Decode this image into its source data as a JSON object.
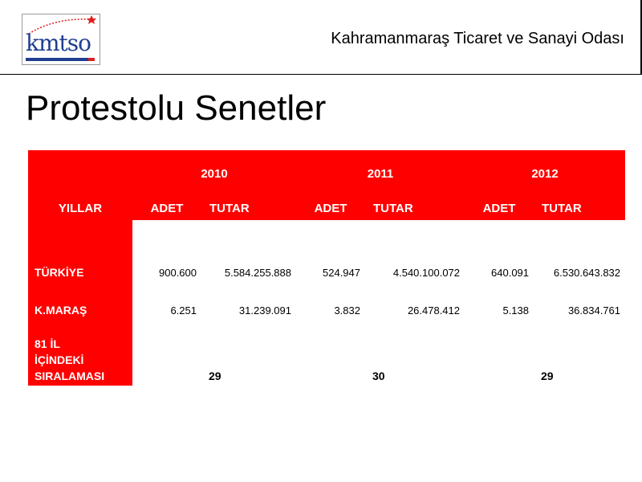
{
  "header": {
    "org_name": "Kahramanmaraş Ticaret ve Sanayi Odası",
    "logo_text": "kmtso",
    "logo_icon": "kmtso-logo-icon"
  },
  "slide": {
    "title": "Protestolu Senetler"
  },
  "table": {
    "label_header": "YILLAR",
    "years": [
      "2010",
      "2011",
      "2012"
    ],
    "sub_headers": {
      "adet": "ADET",
      "tutar": "TUTAR"
    },
    "rows": [
      {
        "label": "TÜRKİYE",
        "values": [
          "900.600",
          "5.584.255.888",
          "524.947",
          "4.540.100.072",
          "640.091",
          "6.530.643.832"
        ]
      },
      {
        "label": "K.MARAŞ",
        "values": [
          "6.251",
          "31.239.091",
          "3.832",
          "26.478.412",
          "5.138",
          "36.834.761"
        ]
      }
    ],
    "rank_row": {
      "label_lines": [
        "81 İL",
        "İÇİNDEKİ",
        "SIRALAMASI"
      ],
      "ranks": [
        "29",
        "30",
        "29"
      ]
    }
  },
  "colors": {
    "header_red": "#ff0000",
    "logo_blue": "#1f3f8f"
  }
}
